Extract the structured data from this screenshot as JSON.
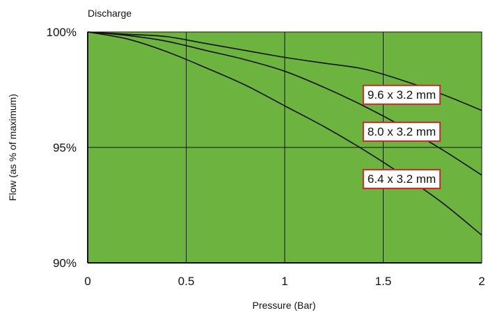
{
  "chart_data": {
    "type": "line",
    "title": "Discharge",
    "xlabel": "Pressure (Bar)",
    "ylabel": "Flow (as % of maximum)",
    "xlim": [
      0,
      2
    ],
    "ylim": [
      90,
      100
    ],
    "xticks": [
      0,
      0.5,
      1,
      1.5,
      2
    ],
    "xtick_labels": [
      "0",
      "0.5",
      "1",
      "1.5",
      "2"
    ],
    "yticks": [
      90,
      95,
      100
    ],
    "ytick_labels": [
      "90%",
      "95%",
      "100%"
    ],
    "grid": true,
    "background_color": "#6db33f",
    "line_color": "#111111",
    "label_border_color": "#cc2a2a",
    "series": [
      {
        "name": "9.6 x 3.2 mm",
        "x": [
          0,
          0.2,
          0.4,
          0.6,
          0.8,
          1.0,
          1.2,
          1.4,
          1.6,
          1.8,
          2.0
        ],
        "y": [
          100,
          99.9,
          99.8,
          99.5,
          99.2,
          98.9,
          98.65,
          98.4,
          97.9,
          97.3,
          96.6
        ]
      },
      {
        "name": "8.0 x 3.2 mm",
        "x": [
          0,
          0.2,
          0.4,
          0.6,
          0.8,
          1.0,
          1.2,
          1.4,
          1.6,
          1.8,
          2.0
        ],
        "y": [
          100,
          99.85,
          99.6,
          99.2,
          98.8,
          98.3,
          97.6,
          96.8,
          95.9,
          94.9,
          93.8
        ]
      },
      {
        "name": "6.4 x 3.2 mm",
        "x": [
          0,
          0.2,
          0.4,
          0.6,
          0.8,
          1.0,
          1.2,
          1.4,
          1.6,
          1.8,
          2.0
        ],
        "y": [
          100,
          99.7,
          99.15,
          98.45,
          97.7,
          96.8,
          95.9,
          94.9,
          93.8,
          92.6,
          91.2
        ]
      }
    ]
  }
}
